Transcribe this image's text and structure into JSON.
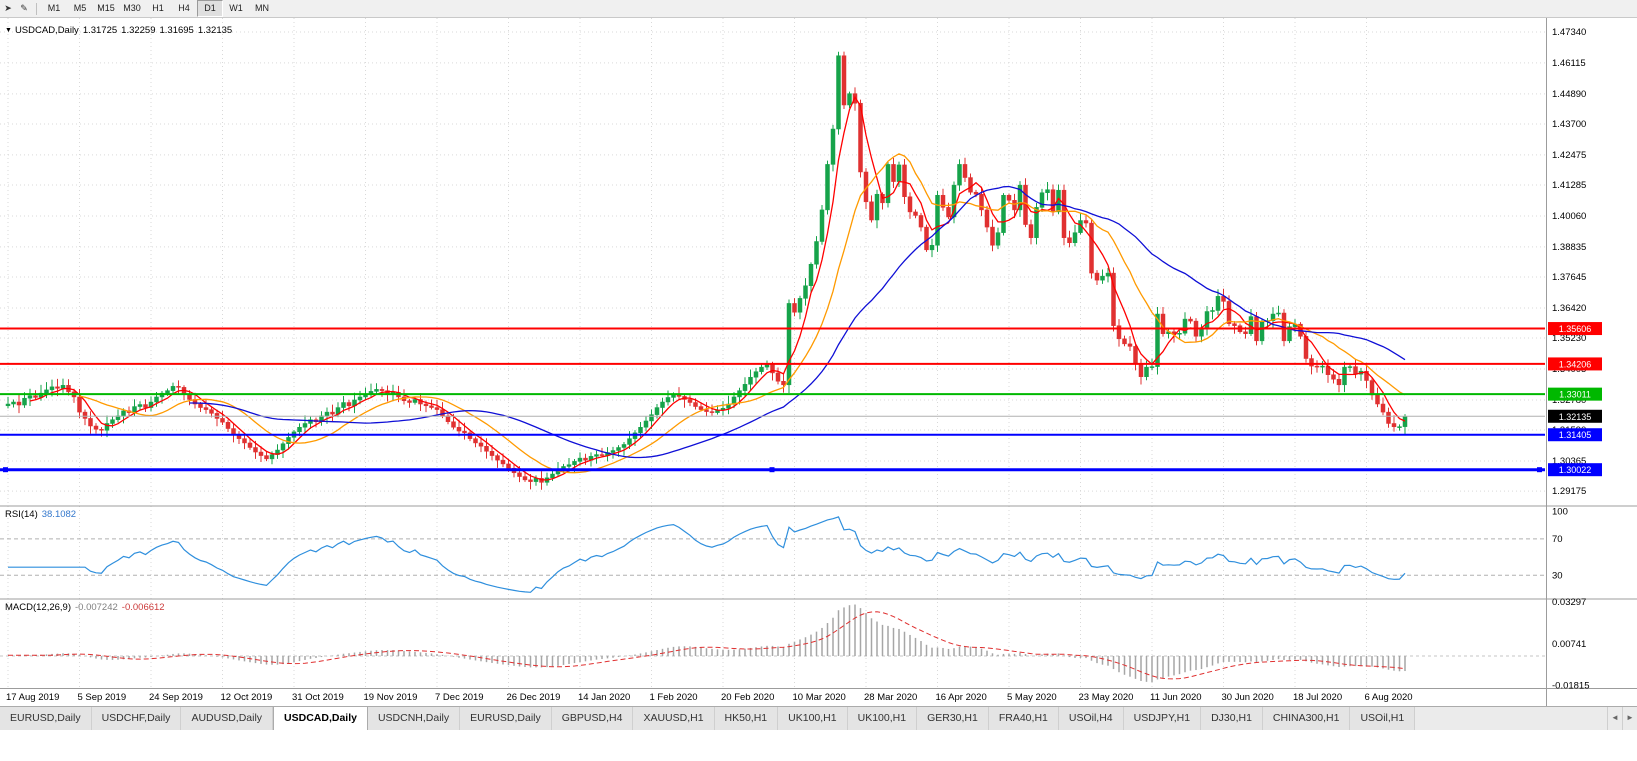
{
  "icons": {
    "collapse_arrow": "▼",
    "chart_arrow": "➤",
    "pencil": "✎",
    "tab_scroll_left": "◄",
    "tab_scroll_right": "►"
  },
  "toolbar": {
    "icons": [
      {
        "name": "chart-arrow-icon",
        "glyph": "➤"
      },
      {
        "name": "draw-icon",
        "glyph": "✎"
      }
    ],
    "timeframes": [
      {
        "label": "M1"
      },
      {
        "label": "M5"
      },
      {
        "label": "M15"
      },
      {
        "label": "M30"
      },
      {
        "label": "H1"
      },
      {
        "label": "H4"
      },
      {
        "label": "D1",
        "active": true
      },
      {
        "label": "W1"
      },
      {
        "label": "MN"
      }
    ]
  },
  "chart_data": {
    "type": "candlestick",
    "title": {
      "symbol": "USDCAD,Daily",
      "open": "1.31725",
      "high": "1.32259",
      "low": "1.31695",
      "close": "1.32135"
    },
    "x_labels": [
      "17 Aug 2019",
      "5 Sep 2019",
      "24 Sep 2019",
      "12 Oct 2019",
      "31 Oct 2019",
      "19 Nov 2019",
      "7 Dec 2019",
      "26 Dec 2019",
      "14 Jan 2020",
      "1 Feb 2020",
      "20 Feb 2020",
      "10 Mar 2020",
      "28 Mar 2020",
      "16 Apr 2020",
      "5 May 2020",
      "23 May 2020",
      "11 Jun 2020",
      "30 Jun 2020",
      "18 Jul 2020",
      "6 Aug 2020"
    ],
    "label_every": 13,
    "first_open": 1.3255,
    "closes": [
      1.3262,
      1.327,
      1.3258,
      1.3285,
      1.3295,
      1.3288,
      1.3305,
      1.3318,
      1.333,
      1.3324,
      1.3336,
      1.331,
      1.329,
      1.323,
      1.3205,
      1.3175,
      1.3162,
      1.3158,
      1.3185,
      1.32,
      1.3215,
      1.3235,
      1.3228,
      1.3252,
      1.326,
      1.3248,
      1.327,
      1.329,
      1.3305,
      1.3315,
      1.3332,
      1.3328,
      1.33,
      1.328,
      1.3262,
      1.3248,
      1.324,
      1.3225,
      1.3205,
      1.319,
      1.3165,
      1.314,
      1.3125,
      1.3108,
      1.309,
      1.3072,
      1.3058,
      1.3045,
      1.3062,
      1.308,
      1.3105,
      1.313,
      1.3152,
      1.317,
      1.3185,
      1.32,
      1.3192,
      1.3215,
      1.323,
      1.3222,
      1.3248,
      1.3268,
      1.3255,
      1.3278,
      1.329,
      1.3302,
      1.3312,
      1.332,
      1.3315,
      1.3302,
      1.3308,
      1.329,
      1.3275,
      1.3268,
      1.328,
      1.3262,
      1.3255,
      1.3248,
      1.324,
      1.3215,
      1.3192,
      1.317,
      1.3155,
      1.3148,
      1.3125,
      1.3108,
      1.3095,
      1.3075,
      1.3058,
      1.304,
      1.3025,
      1.3008,
      1.299,
      1.2975,
      1.2962,
      1.2955,
      1.2968,
      1.2952,
      1.297,
      1.2985,
      1.3002,
      1.3015,
      1.3022,
      1.3035,
      1.3048,
      1.304,
      1.3055,
      1.3062,
      1.3058,
      1.307,
      1.3078,
      1.309,
      1.3102,
      1.3125,
      1.3148,
      1.317,
      1.3195,
      1.322,
      1.3248,
      1.327,
      1.3288,
      1.33,
      1.3292,
      1.328,
      1.3268,
      1.3252,
      1.324,
      1.3232,
      1.3228,
      1.3238,
      1.3245,
      1.3262,
      1.329,
      1.3315,
      1.334,
      1.3368,
      1.339,
      1.3408,
      1.3422,
      1.3385,
      1.3352,
      1.3338,
      1.366,
      1.3625,
      1.368,
      1.373,
      1.3815,
      1.3905,
      1.403,
      1.421,
      1.435,
      1.464,
      1.4445,
      1.449,
      1.4452,
      1.418,
      1.4062,
      1.399,
      1.4092,
      1.4058,
      1.421,
      1.4142,
      1.4208,
      1.4082,
      1.4022,
      1.4008,
      1.3962,
      1.3872,
      1.389,
      1.4088,
      1.404,
      1.4002,
      1.4128,
      1.421,
      1.4158,
      1.41,
      1.4092,
      1.403,
      1.3962,
      1.389,
      1.394,
      1.4088,
      1.4068,
      1.403,
      1.4128,
      1.3972,
      1.392,
      1.404,
      1.4098,
      1.411,
      1.4022,
      1.4108,
      1.392,
      1.39,
      1.394,
      1.3988,
      1.3978,
      1.378,
      1.3752,
      1.3768,
      1.378,
      1.3572,
      1.352,
      1.35,
      1.349,
      1.342,
      1.337,
      1.3408,
      1.341,
      1.3618,
      1.354,
      1.3548,
      1.3538,
      1.3542,
      1.3598,
      1.359,
      1.353,
      1.3558,
      1.3628,
      1.3632,
      1.3688,
      1.3668,
      1.358,
      1.3572,
      1.3548,
      1.354,
      1.3608,
      1.3512,
      1.3588,
      1.3592,
      1.3618,
      1.3622,
      1.3512,
      1.3568,
      1.3578,
      1.353,
      1.3442,
      1.3412,
      1.341,
      1.3412,
      1.3378,
      1.336,
      1.3338,
      1.3408,
      1.341,
      1.338,
      1.3392,
      1.3355,
      1.3298,
      1.3262,
      1.323,
      1.3185,
      1.3172,
      1.31725,
      1.32135
    ],
    "ylim": [
      1.28625,
      1.47813
    ],
    "price_ticks": [
      "1.47340",
      "1.46115",
      "1.44890",
      "1.43700",
      "1.42475",
      "1.41285",
      "1.40060",
      "1.38835",
      "1.37645",
      "1.36420",
      "1.35230",
      "1.34005",
      "1.32780",
      "1.31590",
      "1.30365",
      "1.29175"
    ],
    "hlines": [
      {
        "value": 1.35606,
        "label": "1.35606",
        "color": "#ff0000",
        "width": 2
      },
      {
        "value": 1.34206,
        "label": "1.34206",
        "color": "#ff0000",
        "width": 2
      },
      {
        "value": 1.33011,
        "label": "1.33011",
        "color": "#00b800",
        "width": 2
      },
      {
        "value": 1.31405,
        "label": "1.31405",
        "color": "#0000ff",
        "width": 2
      },
      {
        "value": 1.30022,
        "label": "1.30022",
        "color": "#0000ff",
        "width": 3,
        "selected": true
      }
    ],
    "bid": {
      "value": 1.32135,
      "label": "1.32135",
      "line_color": "#b0b0b0",
      "box_color": "#000000"
    },
    "moving_averages": [
      {
        "period": 5,
        "color": "#ff0000"
      },
      {
        "period": 14,
        "color": "#ff9a00"
      },
      {
        "period": 34,
        "color": "#0f0fd6"
      }
    ],
    "colors": {
      "up": "#16a34a",
      "down": "#e03131",
      "grid": "#d9d9d9",
      "separator": "#9c9c9c",
      "axis_text": "#000000",
      "macd_hist": "#a6a6a6",
      "macd_signal": "#e03131"
    },
    "rsi": {
      "label": "RSI(14)",
      "display": "38.1082",
      "period": 14,
      "color": "#2f8fdd",
      "levels": [
        70,
        30
      ],
      "axis_labels": [
        "100",
        "70",
        "30"
      ],
      "range": [
        5,
        105
      ]
    },
    "macd": {
      "label": "MACD(12,26,9)",
      "display_main": "-0.007242",
      "display_signal": "-0.006612",
      "fast": 12,
      "slow": 26,
      "signal": 9,
      "axis_labels": [
        "0.03297",
        "0.00741",
        "-0.01815"
      ],
      "range": [
        -0.0196,
        0.0343
      ]
    }
  },
  "tabs": {
    "items": [
      {
        "label": "EURUSD,Daily"
      },
      {
        "label": "USDCHF,Daily"
      },
      {
        "label": "AUDUSD,Daily"
      },
      {
        "label": "USDCAD,Daily",
        "active": true
      },
      {
        "label": "USDCNH,Daily"
      },
      {
        "label": "EURUSD,Daily"
      },
      {
        "label": "GBPUSD,H4"
      },
      {
        "label": "XAUUSD,H1"
      },
      {
        "label": "HK50,H1"
      },
      {
        "label": "UK100,H1"
      },
      {
        "label": "UK100,H1"
      },
      {
        "label": "GER30,H1"
      },
      {
        "label": "FRA40,H1"
      },
      {
        "label": "USOil,H4"
      },
      {
        "label": "USDJPY,H1"
      },
      {
        "label": "DJ30,H1"
      },
      {
        "label": "CHINA300,H1"
      },
      {
        "label": "USOil,H1"
      }
    ]
  }
}
